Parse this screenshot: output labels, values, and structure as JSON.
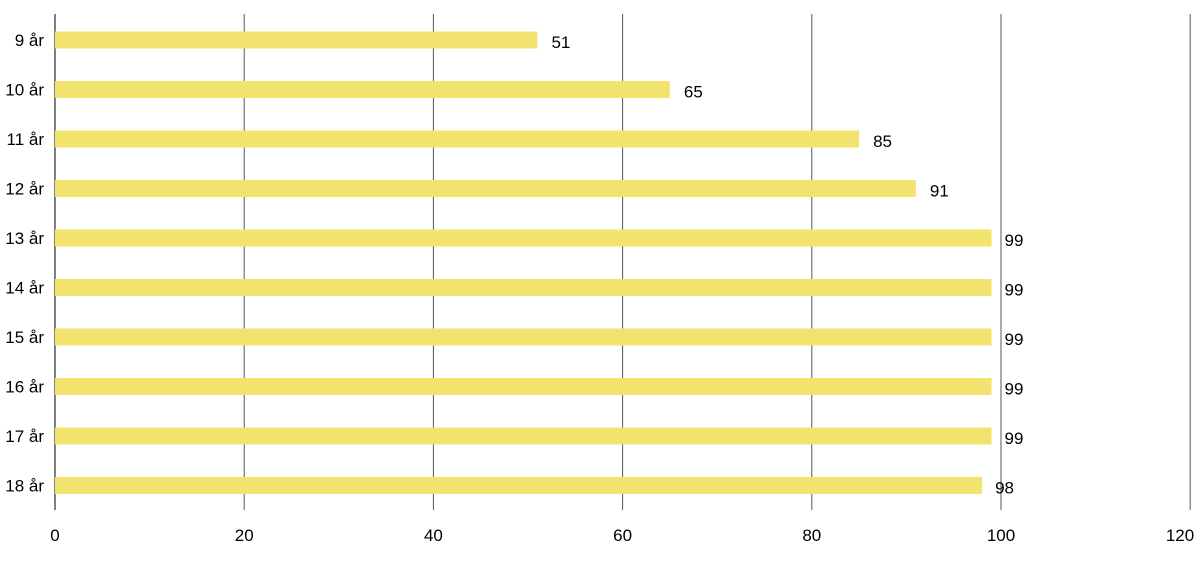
{
  "chart_data": {
    "type": "bar",
    "orientation": "horizontal",
    "categories": [
      "9 år",
      "10 år",
      "11 år",
      "12 år",
      "13 år",
      "14 år",
      "15 år",
      "16 år",
      "17 år",
      "18 år"
    ],
    "values": [
      51,
      65,
      85,
      91,
      99,
      99,
      99,
      99,
      99,
      98
    ],
    "data_labels": [
      "51",
      "65",
      "85",
      "91",
      "99",
      "99",
      "99",
      "99",
      "99",
      "98"
    ],
    "x_ticks": [
      "0",
      "20",
      "40",
      "60",
      "80",
      "100",
      "120"
    ],
    "xlim": [
      0,
      120
    ],
    "title": "",
    "xlabel": "",
    "ylabel": "",
    "grid": "vertical",
    "legend": "none",
    "colors": {
      "bar": "#f2e36e",
      "grid": "#555555",
      "text": "#000000"
    }
  }
}
